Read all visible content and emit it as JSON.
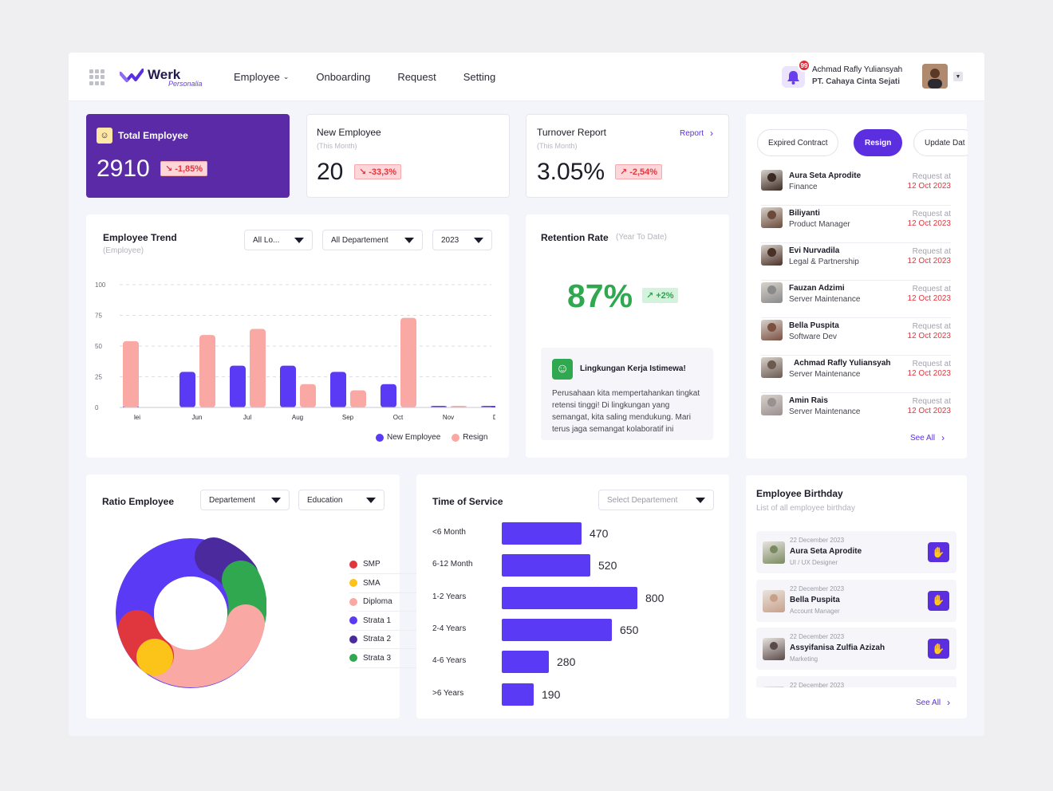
{
  "app": {
    "logo_text": "Werk",
    "logo_sub": "Personalia",
    "nav": [
      {
        "label": "Employee",
        "has_dropdown": true
      },
      {
        "label": "Onboarding"
      },
      {
        "label": "Request"
      },
      {
        "label": "Setting"
      }
    ],
    "notification_count": "99",
    "user_name": "Achmad Rafly Yuliansyah",
    "user_company": "PT. Cahaya Cinta Sejati"
  },
  "stats": {
    "total": {
      "title": "Total Employee",
      "value": "2910",
      "delta": "-1,85%"
    },
    "new": {
      "title": "New Employee",
      "sub": "(This Month)",
      "value": "20",
      "delta": "-33,3%"
    },
    "turnover": {
      "title": "Turnover Report",
      "sub": "(This Month)",
      "value": "3.05%",
      "delta": "-2,54%",
      "link": "Report"
    }
  },
  "trend": {
    "title": "Employee Trend",
    "sub": "(Employee)",
    "filters": {
      "location": "All Lo...",
      "department": "All Departement",
      "year": "2023"
    },
    "legend": {
      "new": "New Employee",
      "resign": "Resign"
    }
  },
  "chart_data": {
    "type": "bar",
    "categories": [
      "Mei",
      "Jun",
      "Jul",
      "Aug",
      "Sep",
      "Oct",
      "Nov",
      "Des"
    ],
    "tick_labels": [
      "lei",
      "Jun",
      "Jul",
      "Aug",
      "Sep",
      "Oct",
      "Nov",
      "Des"
    ],
    "series": [
      {
        "name": "New Employee",
        "color": "#5b3af5",
        "values": [
          0,
          29,
          34,
          34,
          29,
          19,
          1,
          1
        ]
      },
      {
        "name": "Resign",
        "color": "#f9a8a4",
        "values": [
          54,
          59,
          64,
          19,
          14,
          73,
          1,
          1
        ]
      }
    ],
    "ylim": [
      0,
      100
    ],
    "yticks": [
      "100",
      "75",
      "50",
      "25",
      "0"
    ],
    "grid": true,
    "legend_position": "bottom-right"
  },
  "retention": {
    "title": "Retention Rate",
    "sub": "(Year To Date)",
    "value": "87%",
    "delta": "+2%",
    "note_title": "Lingkungan Kerja Istimewa!",
    "note_body": "Perusahaan kita mempertahankan tingkat retensi tinggi! Di lingkungan yang semangat, kita saling mendukung. Mari terus jaga semangat kolaboratif ini"
  },
  "requests": {
    "tabs": [
      "Expired Contract",
      "Resign",
      "Update Dat"
    ],
    "active_tab": "Resign",
    "at_label": "Request at",
    "items": [
      {
        "name": "Aura Seta Aprodite",
        "role": "Finance",
        "date": "12 Oct 2023"
      },
      {
        "name": "Biliyanti",
        "role": "Product Manager",
        "date": "12 Oct 2023"
      },
      {
        "name": "Evi Nurvadila",
        "role": "Legal & Partnership",
        "date": "12 Oct 2023"
      },
      {
        "name": "Fauzan Adzimi",
        "role": "Server Maintenance",
        "date": "12 Oct 2023"
      },
      {
        "name": "Bella Puspita",
        "role": "Software Dev",
        "date": "12 Oct 2023"
      },
      {
        "name": "Achmad Rafly Yuliansyah",
        "role": "Server Maintenance",
        "date": "12 Oct 2023"
      },
      {
        "name": "Amin Rais",
        "role": "Server Maintenance",
        "date": "12 Oct 2023"
      }
    ],
    "see_all": "See All"
  },
  "ratio": {
    "title": "Ratio Employee",
    "filters": {
      "department": "Departement",
      "education": "Education"
    },
    "legend": [
      {
        "label": "SMP",
        "color": "#e0373f"
      },
      {
        "label": "SMA",
        "color": "#fcc419"
      },
      {
        "label": "Diploma",
        "color": "#f9a8a4"
      },
      {
        "label": "Strata 1",
        "color": "#5b3af5"
      },
      {
        "label": "Strata 2",
        "color": "#4a2a9c"
      },
      {
        "label": "Strata 3",
        "color": "#2fa84f"
      }
    ]
  },
  "service": {
    "title": "Time of Service",
    "placeholder": "Select Departement",
    "max": 800,
    "items": [
      {
        "label": "<6 Month",
        "value": 470
      },
      {
        "label": "6-12 Month",
        "value": 520
      },
      {
        "label": "1-2 Years",
        "value": 800
      },
      {
        "label": "2-4 Years",
        "value": 650
      },
      {
        "label": "4-6 Years",
        "value": 280
      },
      {
        "label": ">6 Years",
        "value": 190
      }
    ]
  },
  "birthday": {
    "title": "Employee Birthday",
    "sub": "List of all employee birthday",
    "items": [
      {
        "date": "22 December 2023",
        "name": "Aura Seta Aprodite",
        "role": "UI / UX Designer"
      },
      {
        "date": "22 December 2023",
        "name": "Bella Puspita",
        "role": "Account Manager"
      },
      {
        "date": "22 December 2023",
        "name": "Assyifanisa Zulfia Azizah",
        "role": "Marketing"
      },
      {
        "date": "22 December 2023",
        "name": "",
        "role": ""
      }
    ],
    "see_all": "See All"
  }
}
